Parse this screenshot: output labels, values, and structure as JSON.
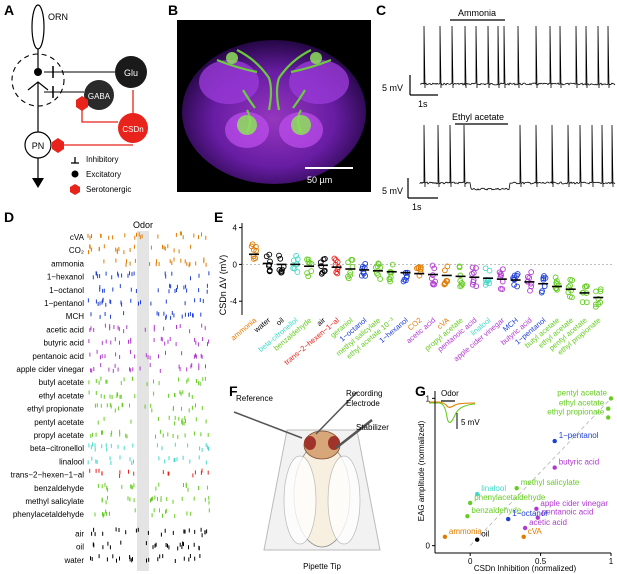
{
  "panels": {
    "a": {
      "letter": "A",
      "labels": {
        "orn": "ORN",
        "glu": "Glu",
        "gaba": "GABA",
        "csdn": "CSDn",
        "pn": "PN"
      },
      "legend": [
        {
          "symbol": "inhibitory-bar",
          "label": "Inhibitory"
        },
        {
          "symbol": "dot",
          "label": "Excitatory"
        },
        {
          "symbol": "hexagon",
          "label": "Serotonergic"
        }
      ],
      "colors": {
        "glu": "#1a1a1a",
        "gaba": "#2a2a2a",
        "csdn": "#e8231b",
        "serotonergic": "#e8231b"
      }
    },
    "b": {
      "letter": "B",
      "scale_label": "50 µm",
      "colors": {
        "neuropil": "#8a2be2",
        "csdn": "#6cd43a"
      }
    },
    "c": {
      "letter": "C",
      "traces": [
        {
          "odor": "Ammonia",
          "v_scale": "5 mV",
          "t_scale": "1s"
        },
        {
          "odor": "Ethyl acetate",
          "v_scale": "5 mV",
          "t_scale": "1s"
        }
      ]
    },
    "d": {
      "letter": "D",
      "header": "Odor",
      "rows": [
        {
          "label": "cVA",
          "color": "#e07b00"
        },
        {
          "label": "CO₂",
          "color": "#e07b00"
        },
        {
          "label": "ammonia",
          "color": "#e07b00"
        },
        {
          "label": "1−hexanol",
          "color": "#1f3fd6"
        },
        {
          "label": "1−octanol",
          "color": "#1f3fd6"
        },
        {
          "label": "1−pentanol",
          "color": "#1f3fd6"
        },
        {
          "label": "MCH",
          "color": "#1f3fd6"
        },
        {
          "label": "acetic acid",
          "color": "#b03ad0"
        },
        {
          "label": "butyric acid",
          "color": "#b03ad0"
        },
        {
          "label": "pentanoic acid",
          "color": "#b03ad0"
        },
        {
          "label": "apple cider vinegar",
          "color": "#b03ad0"
        },
        {
          "label": "butyl acetate",
          "color": "#66cc22"
        },
        {
          "label": "ethyl acetate",
          "color": "#66cc22"
        },
        {
          "label": "ethyl propionate",
          "color": "#66cc22"
        },
        {
          "label": "pentyl acetate",
          "color": "#66cc22"
        },
        {
          "label": "propyl acetate",
          "color": "#66cc22"
        },
        {
          "label": "beta−citronellol",
          "color": "#44d8c8"
        },
        {
          "label": "linalool",
          "color": "#44d8c8"
        },
        {
          "label": "trans−2−hexen−1−al",
          "color": "#e8231b"
        },
        {
          "label": "benzaldehyde",
          "color": "#66cc22"
        },
        {
          "label": "methyl salicylate",
          "color": "#66cc22"
        },
        {
          "label": "phenylacetaldehyde",
          "color": "#66cc22"
        },
        {
          "label": "air",
          "color": "#000000"
        },
        {
          "label": "oil",
          "color": "#000000"
        },
        {
          "label": "water",
          "color": "#000000"
        }
      ]
    },
    "e": {
      "letter": "E",
      "ylabel": "CSDn ΔV (mV)",
      "yticks": [
        "4",
        "0",
        "-4"
      ],
      "chart_data": {
        "type": "scatter",
        "ylabel": "CSDn ΔV (mV)",
        "ylim": [
          -5.5,
          4.5
        ],
        "categories": [
          "ammonia",
          "water",
          "oil",
          "beta-citronellol",
          "benzaldehyde",
          "air",
          "trans-2-hexen-1-al",
          "geraniol",
          "1-octanol",
          "methyl salicylate",
          "ethyl acetate 10⁻³",
          "1-hexanol",
          "CO2",
          "acetic acid",
          "cVA",
          "propyl acetate",
          "pentanoic acid",
          "linalool",
          "apple cider vinegar",
          "MCH",
          "butyric acid",
          "1-pentanol",
          "butyl acetate",
          "ethyl acetate",
          "pentyl acetate",
          "ethyl propionate"
        ],
        "display_labels": [
          "ammonia",
          "water",
          "oil",
          "beta-citronellol",
          "benzaldehyde",
          "air",
          "trans−2−hexen−1−al",
          "geraniol",
          "1−octanol",
          "methyl salicylate",
          "ethyl acetate 10⁻³",
          "1−hexanol",
          "CO2",
          "acetic acid",
          "cVA",
          "propyl acetate",
          "pentanoic acid",
          "linalool",
          "apple cider vinegar",
          "MCH",
          "butyric acid",
          "1−pentanol",
          "butyl acetate",
          "ethyl acetate",
          "pentyl acetate",
          "ethyl propionate"
        ],
        "label_colors": [
          "#e07b00",
          "#000000",
          "#000000",
          "#44d8c8",
          "#66cc22",
          "#000000",
          "#e8231b",
          "#66cc22",
          "#1f3fd6",
          "#66cc22",
          "#66cc22",
          "#1f3fd6",
          "#e07b00",
          "#b03ad0",
          "#e07b00",
          "#66cc22",
          "#b03ad0",
          "#44d8c8",
          "#b03ad0",
          "#1f3fd6",
          "#b03ad0",
          "#1f3fd6",
          "#66cc22",
          "#66cc22",
          "#66cc22",
          "#66cc22"
        ],
        "means": [
          1.1,
          0.1,
          0.0,
          0.0,
          -0.2,
          -0.1,
          -0.3,
          -0.5,
          -0.6,
          -0.7,
          -0.8,
          -0.9,
          -1.0,
          -1.1,
          -1.2,
          -1.3,
          -1.4,
          -1.5,
          -1.6,
          -1.7,
          -1.9,
          -2.1,
          -2.4,
          -2.7,
          -3.1,
          -3.6
        ],
        "grid": false
      }
    },
    "f": {
      "letter": "F",
      "labels": {
        "recording": "Recording",
        "electrode": "Electrode",
        "reference": "Reference",
        "stabilizer": "Stabilizer",
        "pipette": "Pipette Tip"
      }
    },
    "g": {
      "letter": "G",
      "inset": {
        "odor_label": "Odor",
        "scale_label": "5 mV"
      },
      "chart_data": {
        "type": "scatter",
        "xlabel": "CSDn Inhibition (normalized)",
        "ylabel": "EAG amplitude (normalized)",
        "xlim": [
          -0.25,
          1.0
        ],
        "ylim": [
          -0.05,
          1.05
        ],
        "xticks": [
          "0",
          "0.5",
          "1"
        ],
        "yticks": [
          "0",
          "1"
        ],
        "points": [
          {
            "label": "pentyl acetate",
            "x": 1.0,
            "y": 1.0,
            "color": "#66cc22"
          },
          {
            "label": "ethyl acetate",
            "x": 0.98,
            "y": 0.93,
            "color": "#66cc22"
          },
          {
            "label": "ethyl propionate",
            "x": 0.98,
            "y": 0.87,
            "color": "#66cc22"
          },
          {
            "label": "1−pentanol",
            "x": 0.6,
            "y": 0.71,
            "color": "#1f3fd6"
          },
          {
            "label": "butyric acid",
            "x": 0.6,
            "y": 0.53,
            "color": "#b03ad0"
          },
          {
            "label": "methyl salicylate",
            "x": 0.33,
            "y": 0.39,
            "color": "#66cc22"
          },
          {
            "label": "linalool",
            "x": 0.05,
            "y": 0.35,
            "color": "#44d8c8"
          },
          {
            "label": "phenylacetaldehyde",
            "x": 0.0,
            "y": 0.29,
            "color": "#66cc22"
          },
          {
            "label": "apple cider vinegar",
            "x": 0.47,
            "y": 0.25,
            "color": "#b03ad0"
          },
          {
            "label": "pentanoic acid",
            "x": 0.48,
            "y": 0.19,
            "color": "#b03ad0"
          },
          {
            "label": "benzaldehyde",
            "x": -0.02,
            "y": 0.2,
            "color": "#66cc22"
          },
          {
            "label": "1−octanol",
            "x": 0.27,
            "y": 0.18,
            "color": "#1f3fd6"
          },
          {
            "label": "acetic acid",
            "x": 0.39,
            "y": 0.12,
            "color": "#b03ad0"
          },
          {
            "label": "cVA",
            "x": 0.38,
            "y": 0.06,
            "color": "#e07b00"
          },
          {
            "label": "ammonia",
            "x": -0.18,
            "y": 0.06,
            "color": "#e07b00"
          },
          {
            "label": "oil",
            "x": 0.05,
            "y": 0.04,
            "color": "#000000"
          }
        ]
      }
    }
  }
}
